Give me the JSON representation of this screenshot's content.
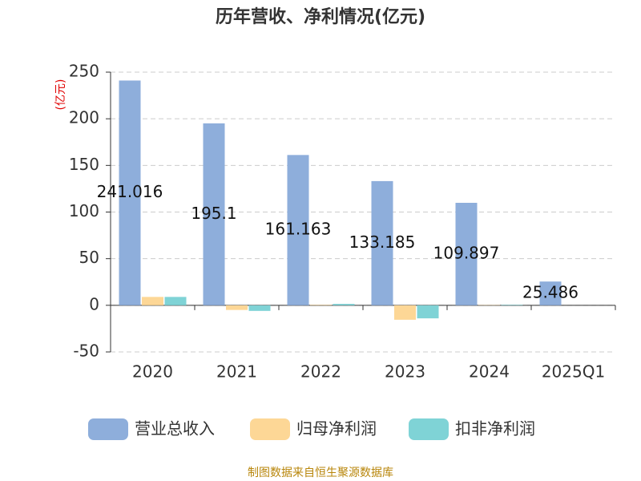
{
  "chart_data": {
    "type": "bar",
    "title": "历年营收、净利情况(亿元)",
    "y_axis_label": "(亿元)",
    "categories": [
      "2020",
      "2021",
      "2022",
      "2023",
      "2024",
      "2025Q1"
    ],
    "series": [
      {
        "name": "营业总收入",
        "color": "#8eaedb",
        "values": [
          241.016,
          195.1,
          161.163,
          133.185,
          109.897,
          25.486
        ],
        "show_labels": true
      },
      {
        "name": "归母净利润",
        "color": "#fdd796",
        "values": [
          9,
          -5,
          0.5,
          -15.5,
          0.3,
          0
        ],
        "show_labels": false
      },
      {
        "name": "扣非净利润",
        "color": "#7fd3d6",
        "values": [
          9,
          -6,
          1.5,
          -14,
          0.5,
          0
        ],
        "show_labels": false
      }
    ],
    "ylim": [
      -50,
      250
    ],
    "yticks": [
      -50,
      0,
      50,
      100,
      150,
      200,
      250
    ],
    "grid": true,
    "source": "制图数据来自恒生聚源数据库"
  }
}
